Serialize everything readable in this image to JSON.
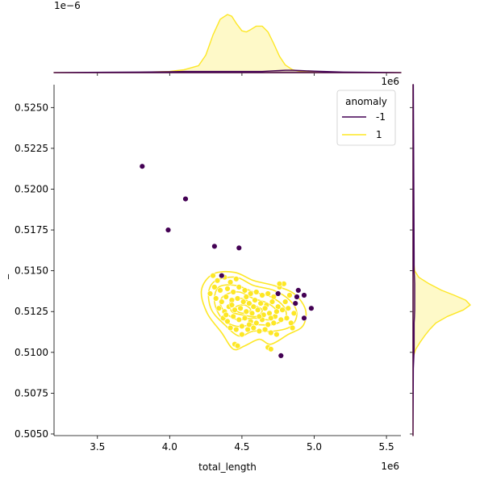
{
  "chart_data": {
    "type": "scatter",
    "title": "",
    "xlabel": "total_length",
    "ylabel": "_",
    "x_offset_text": "1e6",
    "y_offset_text": "",
    "top_marginal_offset_text": "1e−6",
    "right_marginal_offset_text": "1e6",
    "xlim": [
      3.2,
      5.6
    ],
    "ylim": [
      0.5049,
      0.5264
    ],
    "x_ticks": [
      3.5,
      4.0,
      4.5,
      5.0,
      5.5
    ],
    "x_tick_labels": [
      "3.5",
      "4.0",
      "4.5",
      "5.0",
      "5.5"
    ],
    "y_ticks": [
      0.505,
      0.5075,
      0.51,
      0.5125,
      0.515,
      0.5175,
      0.52,
      0.5225,
      0.525
    ],
    "y_tick_labels": [
      "0.5050",
      "0.5075",
      "0.5100",
      "0.5125",
      "0.5150",
      "0.5175",
      "0.5200",
      "0.5225",
      "0.5250"
    ],
    "grid": false,
    "legend": {
      "title": "anomaly",
      "position": "top-right",
      "entries": [
        {
          "label": "-1",
          "color": "#440154"
        },
        {
          "label": "1",
          "color": "#fde725"
        }
      ]
    },
    "series": [
      {
        "name": "-1",
        "color": "#440154",
        "points": [
          [
            3.81,
            0.5214
          ],
          [
            4.11,
            0.5194
          ],
          [
            3.99,
            0.5175
          ],
          [
            4.31,
            0.5165
          ],
          [
            4.48,
            0.5164
          ],
          [
            4.36,
            0.5147
          ],
          [
            4.75,
            0.5136
          ],
          [
            4.89,
            0.5138
          ],
          [
            4.88,
            0.5134
          ],
          [
            4.93,
            0.5135
          ],
          [
            4.87,
            0.513
          ],
          [
            4.98,
            0.5127
          ],
          [
            4.93,
            0.5121
          ],
          [
            4.77,
            0.5098
          ]
        ]
      },
      {
        "name": "1",
        "color": "#fde725",
        "points": [
          [
            4.3,
            0.5147
          ],
          [
            4.33,
            0.5144
          ],
          [
            4.38,
            0.5146
          ],
          [
            4.42,
            0.5143
          ],
          [
            4.46,
            0.5145
          ],
          [
            4.31,
            0.514
          ],
          [
            4.35,
            0.5138
          ],
          [
            4.4,
            0.5139
          ],
          [
            4.44,
            0.5137
          ],
          [
            4.48,
            0.514
          ],
          [
            4.52,
            0.5138
          ],
          [
            4.56,
            0.5136
          ],
          [
            4.6,
            0.5137
          ],
          [
            4.64,
            0.5135
          ],
          [
            4.68,
            0.5136
          ],
          [
            4.72,
            0.5134
          ],
          [
            4.76,
            0.514
          ],
          [
            4.79,
            0.5142
          ],
          [
            4.83,
            0.5135
          ],
          [
            4.8,
            0.5131
          ],
          [
            4.32,
            0.5133
          ],
          [
            4.36,
            0.5131
          ],
          [
            4.39,
            0.5134
          ],
          [
            4.43,
            0.5132
          ],
          [
            4.47,
            0.5133
          ],
          [
            4.51,
            0.5131
          ],
          [
            4.55,
            0.513
          ],
          [
            4.59,
            0.5132
          ],
          [
            4.63,
            0.513
          ],
          [
            4.67,
            0.5129
          ],
          [
            4.71,
            0.5131
          ],
          [
            4.75,
            0.5128
          ],
          [
            4.78,
            0.5126
          ],
          [
            4.82,
            0.5127
          ],
          [
            4.86,
            0.5124
          ],
          [
            4.34,
            0.5127
          ],
          [
            4.38,
            0.5125
          ],
          [
            4.41,
            0.5128
          ],
          [
            4.45,
            0.5126
          ],
          [
            4.49,
            0.5127
          ],
          [
            4.53,
            0.5125
          ],
          [
            4.57,
            0.5124
          ],
          [
            4.61,
            0.5126
          ],
          [
            4.65,
            0.5123
          ],
          [
            4.69,
            0.5124
          ],
          [
            4.73,
            0.5122
          ],
          [
            4.77,
            0.512
          ],
          [
            4.81,
            0.5121
          ],
          [
            4.84,
            0.5118
          ],
          [
            4.85,
            0.5115
          ],
          [
            4.37,
            0.5121
          ],
          [
            4.4,
            0.5119
          ],
          [
            4.44,
            0.5122
          ],
          [
            4.48,
            0.512
          ],
          [
            4.52,
            0.5121
          ],
          [
            4.56,
            0.5119
          ],
          [
            4.6,
            0.5118
          ],
          [
            4.64,
            0.512
          ],
          [
            4.68,
            0.5117
          ],
          [
            4.72,
            0.5118
          ],
          [
            4.42,
            0.5115
          ],
          [
            4.46,
            0.5114
          ],
          [
            4.5,
            0.5116
          ],
          [
            4.54,
            0.5114
          ],
          [
            4.58,
            0.5115
          ],
          [
            4.62,
            0.5113
          ],
          [
            4.66,
            0.5114
          ],
          [
            4.7,
            0.5112
          ],
          [
            4.74,
            0.5111
          ],
          [
            4.5,
            0.5111
          ],
          [
            4.45,
            0.5105
          ],
          [
            4.47,
            0.5104
          ],
          [
            4.68,
            0.5103
          ],
          [
            4.7,
            0.5102
          ],
          [
            4.76,
            0.5142
          ],
          [
            4.53,
            0.5134
          ],
          [
            4.58,
            0.5128
          ],
          [
            4.62,
            0.5122
          ],
          [
            4.43,
            0.5129
          ],
          [
            4.66,
            0.5127
          ],
          [
            4.7,
            0.5121
          ],
          [
            4.39,
            0.5123
          ],
          [
            4.55,
            0.5117
          ],
          [
            4.74,
            0.5125
          ],
          [
            4.28,
            0.5136
          ]
        ]
      }
    ],
    "kde_contours": {
      "series": "1",
      "color": "#fde725",
      "levels": [
        [
          [
            4.3,
            0.5148
          ],
          [
            4.45,
            0.5149
          ],
          [
            4.58,
            0.5144
          ],
          [
            4.72,
            0.5141
          ],
          [
            4.86,
            0.5136
          ],
          [
            4.94,
            0.5126
          ],
          [
            4.92,
            0.5116
          ],
          [
            4.82,
            0.5111
          ],
          [
            4.7,
            0.5105
          ],
          [
            4.62,
            0.5108
          ],
          [
            4.52,
            0.5104
          ],
          [
            4.44,
            0.5102
          ],
          [
            4.36,
            0.5112
          ],
          [
            4.26,
            0.5124
          ],
          [
            4.22,
            0.5138
          ]
        ],
        [
          [
            4.32,
            0.5144
          ],
          [
            4.46,
            0.5146
          ],
          [
            4.58,
            0.5141
          ],
          [
            4.72,
            0.5138
          ],
          [
            4.83,
            0.5132
          ],
          [
            4.88,
            0.5124
          ],
          [
            4.84,
            0.5116
          ],
          [
            4.72,
            0.5113
          ],
          [
            4.58,
            0.5113
          ],
          [
            4.48,
            0.511
          ],
          [
            4.38,
            0.5117
          ],
          [
            4.29,
            0.5126
          ],
          [
            4.27,
            0.5137
          ]
        ],
        [
          [
            4.34,
            0.514
          ],
          [
            4.46,
            0.5141
          ],
          [
            4.58,
            0.5137
          ],
          [
            4.7,
            0.5134
          ],
          [
            4.79,
            0.5128
          ],
          [
            4.8,
            0.5121
          ],
          [
            4.71,
            0.5117
          ],
          [
            4.58,
            0.5117
          ],
          [
            4.46,
            0.5116
          ],
          [
            4.36,
            0.5121
          ],
          [
            4.31,
            0.5131
          ]
        ],
        [
          [
            4.38,
            0.5135
          ],
          [
            4.48,
            0.5137
          ],
          [
            4.58,
            0.5133
          ],
          [
            4.68,
            0.513
          ],
          [
            4.74,
            0.5125
          ],
          [
            4.7,
            0.512
          ],
          [
            4.58,
            0.5121
          ],
          [
            4.47,
            0.512
          ],
          [
            4.39,
            0.5124
          ],
          [
            4.35,
            0.513
          ]
        ],
        [
          [
            4.42,
            0.5131
          ],
          [
            4.5,
            0.5133
          ],
          [
            4.58,
            0.5129
          ],
          [
            4.64,
            0.5126
          ],
          [
            4.6,
            0.5122
          ],
          [
            4.5,
            0.5123
          ],
          [
            4.43,
            0.5125
          ]
        ],
        [
          [
            4.46,
            0.5128
          ],
          [
            4.52,
            0.5129
          ],
          [
            4.56,
            0.5126
          ],
          [
            4.52,
            0.5124
          ],
          [
            4.47,
            0.5125
          ]
        ]
      ]
    },
    "marginal_x_density": {
      "positions": [
        3.2,
        3.8,
        4.0,
        4.1,
        4.2,
        4.25,
        4.3,
        4.35,
        4.4,
        4.43,
        4.46,
        4.5,
        4.53,
        4.56,
        4.6,
        4.64,
        4.68,
        4.72,
        4.76,
        4.8,
        4.85,
        4.9,
        5.0,
        5.2,
        5.6
      ],
      "series": [
        {
          "name": "1",
          "color": "#fde725",
          "values": [
            0,
            0.005,
            0.02,
            0.05,
            0.12,
            0.3,
            0.65,
            0.92,
            1.0,
            0.97,
            0.85,
            0.72,
            0.7,
            0.74,
            0.8,
            0.8,
            0.7,
            0.5,
            0.28,
            0.13,
            0.05,
            0.02,
            0.01,
            0.003,
            0
          ]
        },
        {
          "name": "-1",
          "color": "#440154",
          "values": [
            0,
            0.01,
            0.015,
            0.02,
            0.02,
            0.02,
            0.02,
            0.02,
            0.02,
            0.02,
            0.02,
            0.02,
            0.02,
            0.02,
            0.02,
            0.02,
            0.025,
            0.03,
            0.035,
            0.04,
            0.04,
            0.035,
            0.025,
            0.01,
            0
          ]
        }
      ]
    },
    "marginal_y_density": {
      "positions": [
        0.5049,
        0.509,
        0.5098,
        0.5102,
        0.5106,
        0.511,
        0.5114,
        0.5118,
        0.5122,
        0.5126,
        0.5129,
        0.5132,
        0.5135,
        0.5138,
        0.5142,
        0.5146,
        0.515,
        0.5158,
        0.5264
      ],
      "series": [
        {
          "name": "1",
          "color": "#fde725",
          "values": [
            0,
            0,
            0.01,
            0.05,
            0.12,
            0.2,
            0.29,
            0.4,
            0.6,
            0.88,
            1.0,
            0.92,
            0.72,
            0.5,
            0.28,
            0.1,
            0.03,
            0.005,
            0
          ]
        },
        {
          "name": "-1",
          "color": "#440154",
          "values": [
            0,
            0.005,
            0.015,
            0.02,
            0.02,
            0.02,
            0.02,
            0.02,
            0.025,
            0.03,
            0.03,
            0.03,
            0.03,
            0.03,
            0.03,
            0.025,
            0.02,
            0.02,
            0.005
          ]
        }
      ]
    }
  }
}
